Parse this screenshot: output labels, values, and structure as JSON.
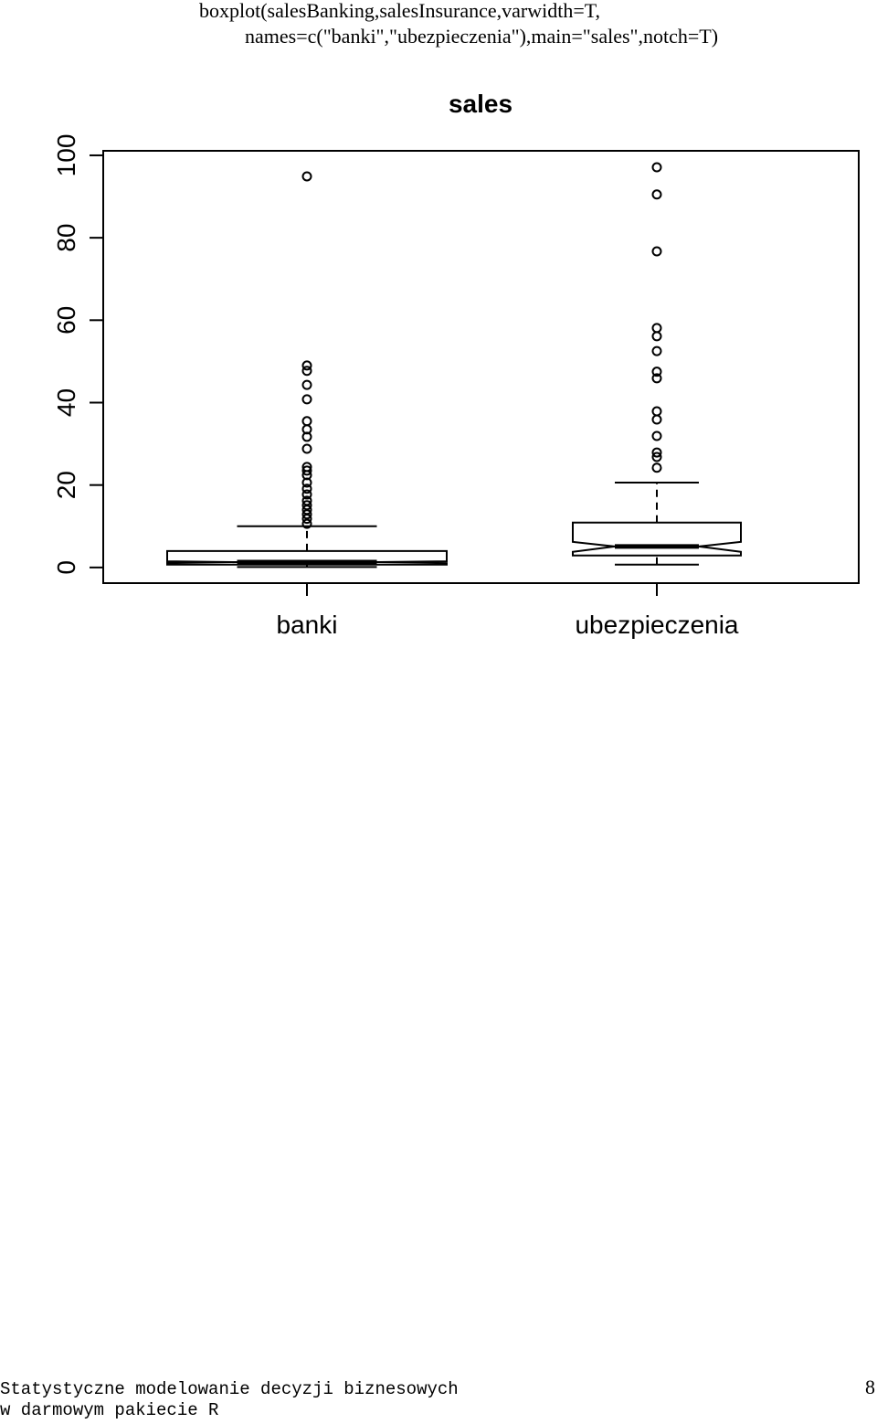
{
  "code": [
    "boxplot(salesBanking,salesInsurance,varwidth=T,",
    "names=c(\"banki\",\"ubezpieczenia\"),main=\"sales\",notch=T)"
  ],
  "chart_data": {
    "type": "boxplot",
    "title": "sales",
    "categories": [
      "banki",
      "ubezpieczenia"
    ],
    "series": [
      {
        "whisker_low": 0.1,
        "q1": 0.7,
        "notch_low": 1.1,
        "median": 1.3,
        "notch_high": 1.5,
        "q3": 4.0,
        "whisker_high": 10,
        "outliers": [
          94.9,
          49,
          47.7,
          44.3,
          40.8,
          35.5,
          33.5,
          31.7,
          28.8,
          24.4,
          23.5,
          22.4,
          20.6,
          19.1,
          17.7,
          16.2,
          15.1,
          14.0,
          12.9,
          11.8,
          10.6
        ]
      },
      {
        "whisker_low": 0.7,
        "q1": 2.9,
        "notch_low": 3.8,
        "median": 5.1,
        "notch_high": 6.2,
        "q3": 10.9,
        "whisker_high": 20.6,
        "outliers": [
          97.1,
          90.5,
          76.7,
          58.1,
          56.1,
          52.5,
          47.5,
          45.9,
          37.9,
          35.9,
          31.9,
          27.9,
          26.8,
          24.2
        ]
      }
    ],
    "ylim": [
      -3.8,
      101.1
    ],
    "yticks": [
      0,
      20,
      40,
      60,
      80,
      100
    ]
  },
  "footer": {
    "lines": [
      "Statystyczne modelowanie decyzji biznesowych",
      "w darmowym pakiecie R"
    ],
    "page": "8"
  }
}
